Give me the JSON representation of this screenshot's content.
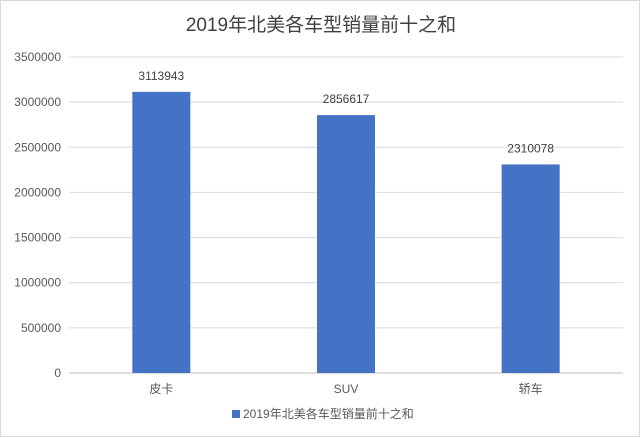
{
  "chart_data": {
    "type": "bar",
    "title": "2019年北美各车型销量前十之和",
    "categories": [
      "皮卡",
      "SUV",
      "轿车"
    ],
    "series": [
      {
        "name": "2019年北美各车型销量前十之和",
        "values": [
          3113943,
          2856617,
          2310078
        ],
        "color": "#4472c4"
      }
    ],
    "data_labels": [
      "3113943",
      "2856617",
      "2310078"
    ],
    "y_ticks": [
      "0",
      "500000",
      "1000000",
      "1500000",
      "2000000",
      "2500000",
      "3000000",
      "3500000"
    ],
    "ylim": [
      0,
      3500000
    ],
    "xlabel": "",
    "ylabel": "",
    "grid": true,
    "legend_position": "bottom"
  }
}
